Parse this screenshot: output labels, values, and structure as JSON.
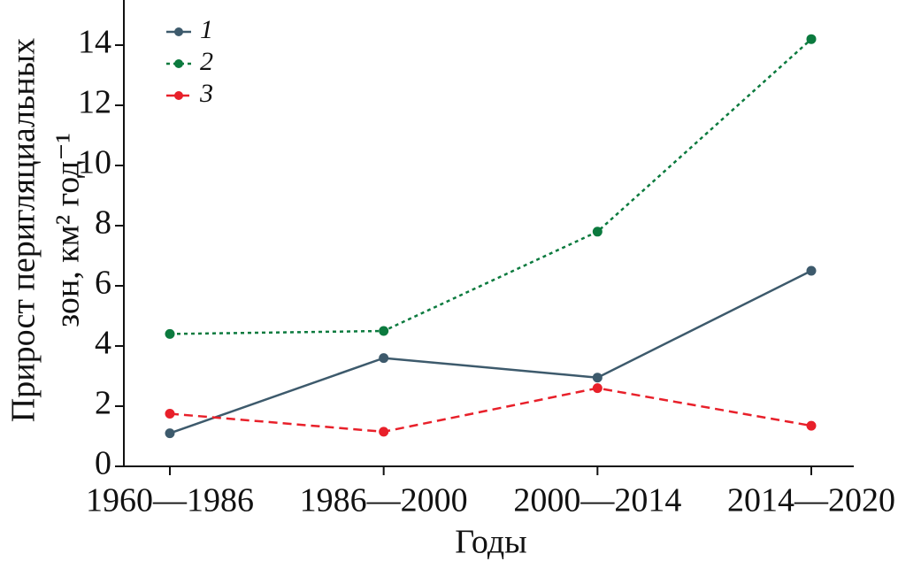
{
  "chart_data": {
    "type": "line",
    "ylabel": [
      "Прирост перигляциальных",
      "зон, км² год⁻¹"
    ],
    "xlabel": "Годы",
    "categories": [
      "1960—1986",
      "1986—2000",
      "2000—2014",
      "2014—2020"
    ],
    "series": [
      {
        "name": "1",
        "color": "#3d5a6c",
        "linestyle": "solid",
        "values": [
          1.1,
          3.6,
          2.95,
          6.5
        ]
      },
      {
        "name": "2",
        "color": "#0b7a3e",
        "linestyle": "dotted",
        "values": [
          4.4,
          4.5,
          7.8,
          14.2
        ]
      },
      {
        "name": "3",
        "color": "#e8202a",
        "linestyle": "dashed",
        "values": [
          1.75,
          1.15,
          2.6,
          1.35
        ]
      }
    ],
    "ylim": [
      0,
      15.5
    ],
    "yticks": [
      0,
      2,
      4,
      6,
      8,
      10,
      12,
      14
    ],
    "legend": "upper left"
  }
}
